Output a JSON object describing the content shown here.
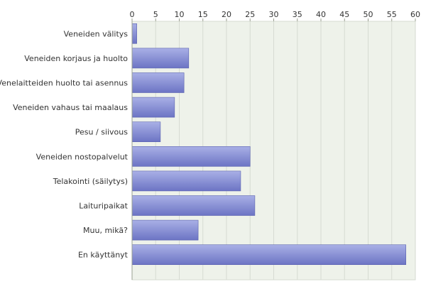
{
  "chart_data": {
    "type": "bar",
    "orientation": "horizontal",
    "categories": [
      "Veneiden välitys",
      "Veneiden korjaus ja huolto",
      "Venelaitteiden huolto tai asennus",
      "Veneiden vahaus tai maalaus",
      "Pesu / siivous",
      "Veneiden nostopalvelut",
      "Telakointi (säilytys)",
      "Laituripaikat",
      "Muu, mikä?",
      "En käyttänyt"
    ],
    "values": [
      1,
      12,
      11,
      9,
      6,
      25,
      23,
      26,
      14,
      58
    ],
    "xlim": [
      0,
      60
    ],
    "xticks": [
      0,
      5,
      10,
      15,
      20,
      25,
      30,
      35,
      40,
      45,
      50,
      55,
      60
    ],
    "x_axis_position": "top",
    "grid": true,
    "title": "",
    "xlabel": "",
    "ylabel": "",
    "colors": {
      "bar_light": "#a9b0e6",
      "bar_dark": "#6c74c4",
      "bar_edge": "#5a62b0",
      "plot_bg": "#eef2ea",
      "grid": "#d6dbd2",
      "axis": "#9aa090"
    }
  }
}
